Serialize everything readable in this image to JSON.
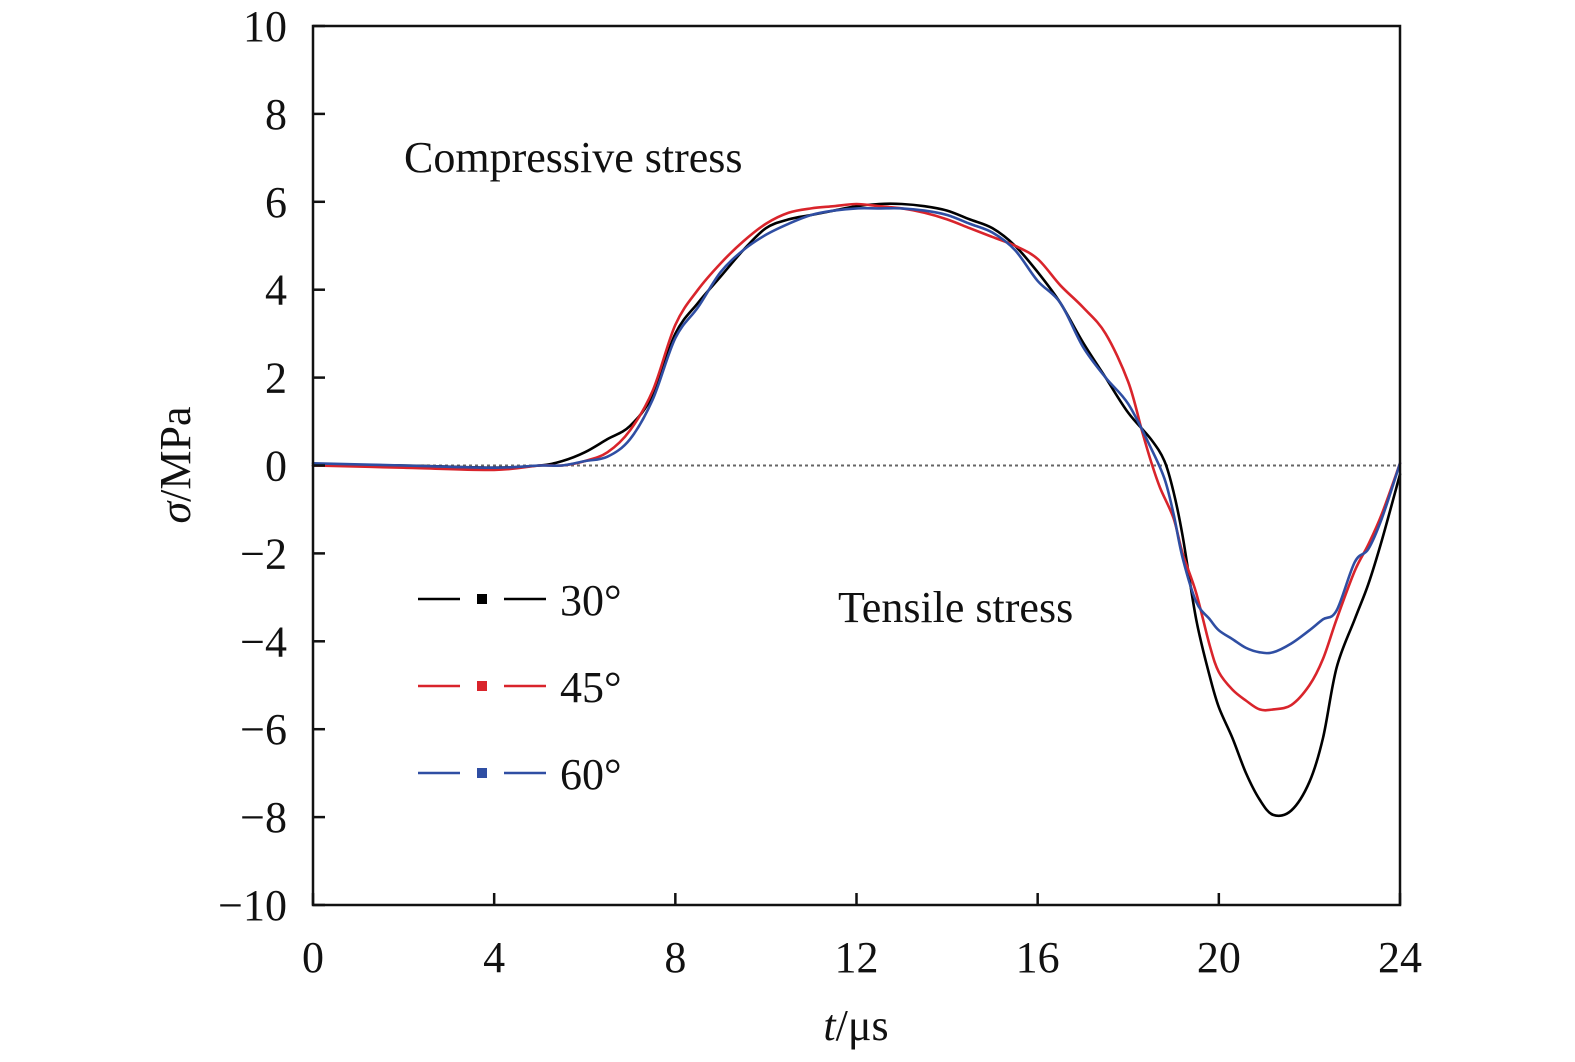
{
  "chart_data": {
    "type": "line",
    "xlabel_italic": "t",
    "xlabel_rest": "/μs",
    "ylabel_italic": "σ",
    "ylabel_rest": "/MPa",
    "xlim": [
      0,
      24
    ],
    "ylim": [
      -10,
      10
    ],
    "x_ticks": [
      0,
      4,
      8,
      12,
      16,
      20,
      24
    ],
    "y_ticks": [
      -10,
      -8,
      -6,
      -4,
      -2,
      0,
      2,
      4,
      6,
      8,
      10
    ],
    "x_tick_labels": [
      "0",
      "4",
      "8",
      "12",
      "16",
      "20",
      "24"
    ],
    "y_tick_labels": [
      "−10",
      "−8",
      "−6",
      "−4",
      "−2",
      "0",
      "2",
      "4",
      "6",
      "8",
      "10"
    ],
    "annotations": {
      "compressive": "Compressive stress",
      "tensile": "Tensile stress"
    },
    "zero_line": {
      "y": 0,
      "style": "dotted",
      "color": "#666666"
    },
    "legend_placement": "left",
    "series": [
      {
        "name": "30°",
        "color": "#000000",
        "x": [
          0,
          2,
          4,
          5,
          5.5,
          6,
          6.5,
          7,
          7.5,
          8,
          8.5,
          9,
          9.5,
          10,
          10.5,
          11,
          11.5,
          12,
          12.5,
          13,
          13.5,
          14,
          14.5,
          15,
          15.5,
          16,
          16.5,
          17,
          17.5,
          18,
          18.5,
          18.8,
          19,
          19.2,
          19.5,
          19.8,
          20,
          20.3,
          20.6,
          20.9,
          21.2,
          21.6,
          22,
          22.3,
          22.6,
          23,
          23.3,
          23.6,
          24
        ],
        "y": [
          0,
          0,
          -0.05,
          0,
          0.1,
          0.3,
          0.6,
          0.9,
          1.6,
          3.0,
          3.7,
          4.3,
          4.9,
          5.4,
          5.6,
          5.7,
          5.8,
          5.9,
          5.95,
          5.95,
          5.9,
          5.8,
          5.6,
          5.4,
          5.0,
          4.4,
          3.7,
          2.8,
          2.0,
          1.2,
          0.6,
          0.1,
          -0.6,
          -1.6,
          -3.5,
          -4.8,
          -5.5,
          -6.2,
          -7.0,
          -7.6,
          -7.95,
          -7.85,
          -7.2,
          -6.2,
          -4.6,
          -3.5,
          -2.7,
          -1.7,
          -0.2
        ]
      },
      {
        "name": "45°",
        "color": "#d9242b",
        "x": [
          0,
          2,
          4,
          5,
          5.5,
          6,
          6.5,
          7,
          7.5,
          8,
          8.5,
          9,
          9.5,
          10,
          10.5,
          11,
          11.5,
          12,
          12.5,
          13,
          13.5,
          14,
          14.5,
          15,
          15.5,
          16,
          16.5,
          17,
          17.5,
          18,
          18.3,
          18.5,
          18.7,
          19,
          19.2,
          19.5,
          19.8,
          20,
          20.3,
          20.6,
          20.9,
          21.2,
          21.6,
          22,
          22.3,
          22.6,
          23,
          23.3,
          23.6,
          24
        ],
        "y": [
          0,
          -0.05,
          -0.1,
          0,
          0,
          0.1,
          0.3,
          0.8,
          1.7,
          3.2,
          4.0,
          4.6,
          5.1,
          5.5,
          5.75,
          5.85,
          5.9,
          5.95,
          5.9,
          5.85,
          5.75,
          5.6,
          5.4,
          5.2,
          5.0,
          4.7,
          4.1,
          3.6,
          3.0,
          1.9,
          0.8,
          0.1,
          -0.5,
          -1.2,
          -2.0,
          -2.9,
          -4.1,
          -4.7,
          -5.1,
          -5.35,
          -5.55,
          -5.55,
          -5.45,
          -5.0,
          -4.4,
          -3.5,
          -2.4,
          -1.8,
          -1.1,
          0.05
        ]
      },
      {
        "name": "60°",
        "color": "#2f4ea3",
        "x": [
          0,
          2,
          4,
          5,
          5.5,
          6,
          6.5,
          7,
          7.5,
          8,
          8.5,
          9,
          9.5,
          10,
          10.5,
          11,
          11.5,
          12,
          12.5,
          13,
          13.5,
          14,
          14.5,
          15,
          15.5,
          16,
          16.5,
          17,
          17.5,
          18,
          18.5,
          18.8,
          19,
          19.2,
          19.5,
          19.8,
          20,
          20.3,
          20.6,
          20.9,
          21.2,
          21.6,
          22,
          22.3,
          22.6,
          23,
          23.3,
          23.6,
          24
        ],
        "y": [
          0.05,
          0,
          -0.05,
          0,
          0,
          0.1,
          0.2,
          0.6,
          1.5,
          2.9,
          3.6,
          4.4,
          4.9,
          5.25,
          5.5,
          5.7,
          5.8,
          5.85,
          5.85,
          5.85,
          5.8,
          5.7,
          5.5,
          5.3,
          4.9,
          4.2,
          3.7,
          2.7,
          2.0,
          1.4,
          0.4,
          -0.3,
          -1.1,
          -2.1,
          -3.1,
          -3.5,
          -3.75,
          -3.95,
          -4.15,
          -4.25,
          -4.25,
          -4.05,
          -3.75,
          -3.5,
          -3.3,
          -2.2,
          -1.9,
          -1.2,
          0.05
        ]
      }
    ]
  }
}
